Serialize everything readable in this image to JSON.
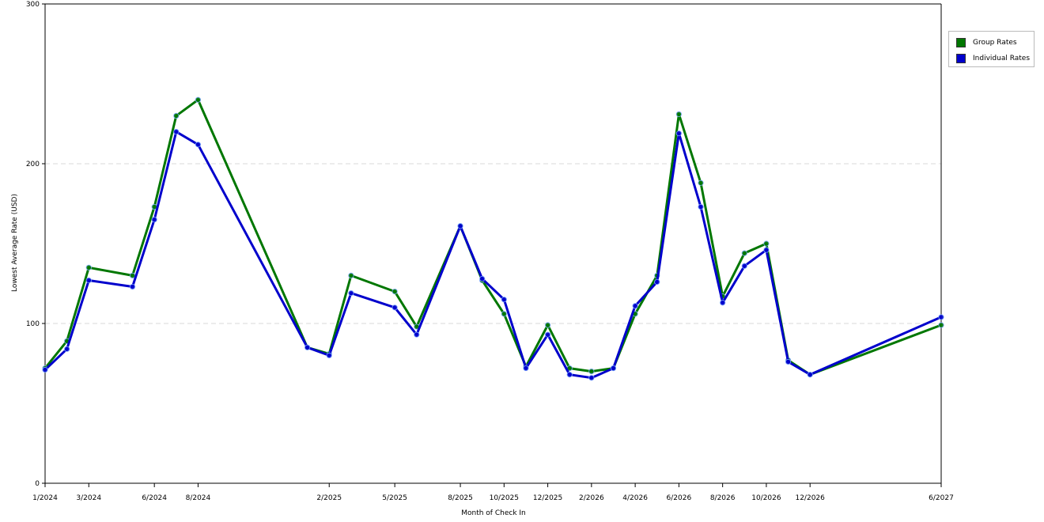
{
  "chart_data": {
    "type": "line",
    "xlabel": "Month of Check In",
    "ylabel": "Lowest Average Rate (USD)",
    "ylim": [
      0,
      300
    ],
    "yticks": [
      "0",
      "100",
      "200",
      "300"
    ],
    "grid": "horizontal dashed",
    "legend_position": "right",
    "tick_labels": [
      "1/2024",
      "3/2024",
      "6/2024",
      "8/2024",
      "2/2025",
      "5/2025",
      "8/2025",
      "10/2025",
      "12/2025",
      "2/2026",
      "4/2026",
      "6/2026",
      "8/2026",
      "10/2026",
      "12/2026",
      "6/2027"
    ],
    "x": [
      "1/2024",
      "2/2024",
      "3/2024",
      "5/2024",
      "6/2024",
      "7/2024",
      "8/2024",
      "1/2025",
      "2/2025",
      "3/2025",
      "5/2025",
      "6/2025",
      "8/2025",
      "9/2025",
      "10/2025",
      "11/2025",
      "12/2025",
      "1/2026",
      "2/2026",
      "3/2026",
      "4/2026",
      "5/2026",
      "6/2026",
      "7/2026",
      "8/2026",
      "9/2026",
      "10/2026",
      "11/2026",
      "12/2026",
      "6/2027"
    ],
    "series": [
      {
        "name": "Group Rates",
        "color": "#007700",
        "values": [
          72,
          89,
          135,
          130,
          173,
          230,
          240,
          85,
          81,
          130,
          120,
          98,
          161,
          127,
          106,
          73,
          99,
          72,
          70,
          72,
          106,
          130,
          231,
          188,
          117,
          144,
          150,
          77,
          68,
          99
        ]
      },
      {
        "name": "Individual Rates",
        "color": "#0000cc",
        "values": [
          71,
          84,
          127,
          123,
          165,
          220,
          212,
          85,
          80,
          119,
          110,
          93,
          161,
          128,
          115,
          72,
          93,
          68,
          66,
          72,
          111,
          126,
          219,
          173,
          113,
          136,
          146,
          76,
          68,
          104
        ]
      }
    ]
  }
}
